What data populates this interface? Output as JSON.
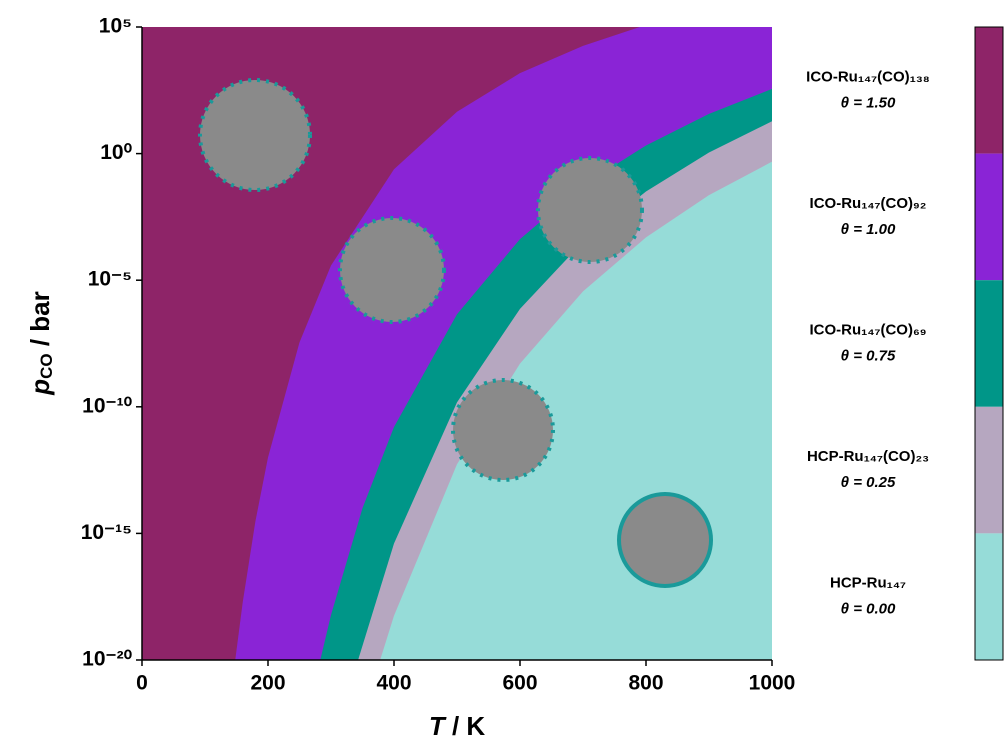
{
  "chart_data": {
    "type": "phase",
    "xlabel": {
      "symbol": "T",
      "unit": " / K"
    },
    "ylabel": {
      "symbol": "p",
      "subscript": "CO",
      "unit": " / bar"
    },
    "xlim": [
      0,
      1000
    ],
    "xticks": [
      0,
      200,
      400,
      600,
      800,
      1000
    ],
    "ylim": [
      1e-20,
      100000
    ],
    "log_y": true,
    "yticks": [
      {
        "value": 1e-20,
        "label": "10⁻²⁰"
      },
      {
        "value": 1e-15,
        "label": "10⁻¹⁵"
      },
      {
        "value": 1e-10,
        "label": "10⁻¹⁰"
      },
      {
        "value": 1e-05,
        "label": "10⁻⁵"
      },
      {
        "value": 1,
        "label": "10⁰"
      },
      {
        "value": 100000,
        "label": "10⁵"
      }
    ],
    "phases": [
      {
        "name": "ICO-Ru₁₄₇(CO)₁₃₈",
        "coverage": "θ = 1.50",
        "color": "#8e2468"
      },
      {
        "name": "ICO-Ru₁₄₇(CO)₉₂",
        "coverage": "θ = 1.00",
        "color": "#8a24d6"
      },
      {
        "name": "ICO-Ru₁₄₇(CO)₆₉",
        "coverage": "θ = 0.75",
        "color": "#009688"
      },
      {
        "name": "HCP-Ru₁₄₇(CO)₂₃",
        "coverage": "θ = 0.25",
        "color": "#b6a7c0"
      },
      {
        "name": "HCP-Ru₁₄₇",
        "coverage": "θ = 0.00",
        "color": "#96dcd8"
      }
    ],
    "boundaries": [
      {
        "x": [
          148,
          160,
          180,
          200,
          250,
          300,
          400,
          500,
          600,
          700,
          790
        ],
        "values": [
          1e-20,
          2e-18,
          3e-15,
          1e-12,
          3.5e-08,
          3.8e-05,
          0.24,
          45,
          1500,
          18000,
          100000
        ]
      },
      {
        "x": [
          283,
          300,
          350,
          400,
          500,
          600,
          700,
          800,
          900,
          1000
        ],
        "values": [
          1e-20,
          6e-19,
          1e-14,
          1.6e-11,
          4.5e-07,
          0.00042,
          0.055,
          2.1,
          37,
          360
        ]
      },
      {
        "x": [
          343,
          400,
          500,
          600,
          700,
          800,
          900,
          1000
        ],
        "values": [
          1e-20,
          4e-16,
          1.5e-10,
          7.4e-07,
          0.00033,
          0.032,
          1.1,
          19
        ]
      },
      {
        "x": [
          378,
          400,
          500,
          600,
          700,
          800,
          900,
          1000
        ],
        "values": [
          1e-20,
          5.6e-19,
          5.4e-13,
          5.1e-09,
          3.6e-06,
          0.00049,
          0.023,
          0.48
        ]
      }
    ]
  }
}
